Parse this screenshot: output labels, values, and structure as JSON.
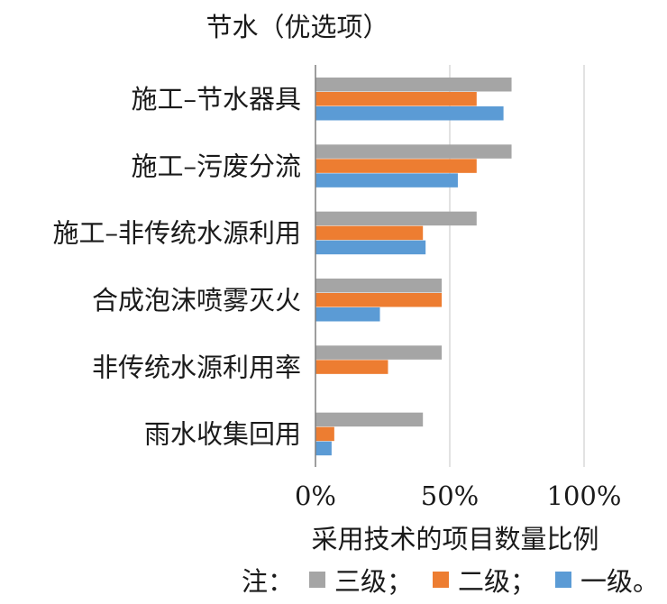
{
  "chart_data": {
    "type": "bar",
    "orientation": "horizontal",
    "title": "节水（优选项）",
    "categories": [
      "施工–节水器具",
      "施工–污废分流",
      "施工–非传统水源利用",
      "合成泡沫喷雾灭火",
      "非传统水源利用率",
      "雨水收集回用"
    ],
    "series": [
      {
        "name": "三级",
        "color": "#a5a5a5",
        "values": [
          73,
          73,
          60,
          47,
          47,
          40
        ]
      },
      {
        "name": "二级",
        "color": "#ed7d31",
        "values": [
          60,
          60,
          40,
          47,
          27,
          7
        ]
      },
      {
        "name": "一级",
        "color": "#5b9bd5",
        "values": [
          70,
          53,
          41,
          24,
          0,
          6
        ]
      }
    ],
    "xlim": [
      0,
      100
    ],
    "xticks": [
      "0%",
      "50%",
      "100%"
    ],
    "xlabel": "采用技术的项目数量比例",
    "grid": true,
    "legend": {
      "position": "bottom",
      "prefix": "注：",
      "separators": [
        "；",
        "；",
        "。"
      ]
    }
  }
}
